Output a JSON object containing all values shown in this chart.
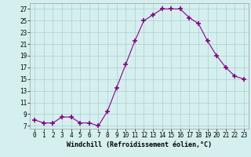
{
  "x": [
    0,
    1,
    2,
    3,
    4,
    5,
    6,
    7,
    8,
    9,
    10,
    11,
    12,
    13,
    14,
    15,
    16,
    17,
    18,
    19,
    20,
    21,
    22,
    23
  ],
  "y": [
    8.0,
    7.5,
    7.5,
    8.5,
    8.5,
    7.5,
    7.5,
    7.0,
    9.5,
    13.5,
    17.5,
    21.5,
    25.0,
    26.0,
    27.0,
    27.0,
    27.0,
    25.5,
    24.5,
    21.5,
    19.0,
    17.0,
    15.5,
    15.0
  ],
  "line_color": "#880088",
  "marker": "+",
  "marker_size": 4,
  "marker_linewidth": 1.2,
  "bg_color": "#d5efef",
  "grid_color": "#aacfcf",
  "xlabel": "Windchill (Refroidissement éolien,°C)",
  "ytick_labels": [
    "7",
    "9",
    "11",
    "13",
    "15",
    "17",
    "19",
    "21",
    "23",
    "25",
    "27"
  ],
  "ytick_values": [
    7,
    9,
    11,
    13,
    15,
    17,
    19,
    21,
    23,
    25,
    27
  ],
  "xlim": [
    -0.5,
    23.5
  ],
  "ylim": [
    6.5,
    28.0
  ],
  "tick_fontsize": 5.5,
  "xlabel_fontsize": 6.0,
  "linewidth": 0.8
}
